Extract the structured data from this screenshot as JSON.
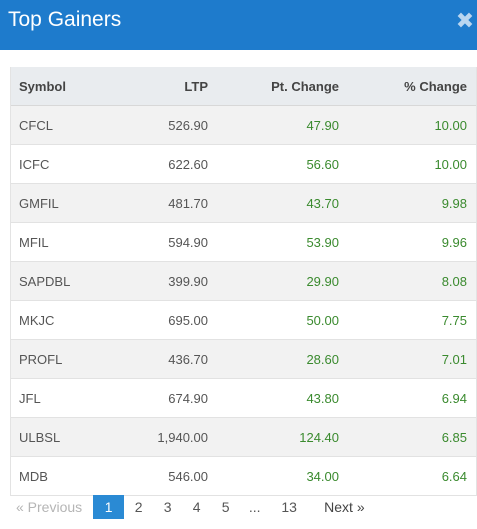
{
  "header": {
    "title": "Top Gainers",
    "close_glyph": "✖"
  },
  "table": {
    "columns": [
      "Symbol",
      "LTP",
      "Pt. Change",
      "% Change"
    ],
    "rows": [
      {
        "symbol": "CFCL",
        "ltp": "526.90",
        "pt_change": "47.90",
        "pct_change": "10.00"
      },
      {
        "symbol": "ICFC",
        "ltp": "622.60",
        "pt_change": "56.60",
        "pct_change": "10.00"
      },
      {
        "symbol": "GMFIL",
        "ltp": "481.70",
        "pt_change": "43.70",
        "pct_change": "9.98"
      },
      {
        "symbol": "MFIL",
        "ltp": "594.90",
        "pt_change": "53.90",
        "pct_change": "9.96"
      },
      {
        "symbol": "SAPDBL",
        "ltp": "399.90",
        "pt_change": "29.90",
        "pct_change": "8.08"
      },
      {
        "symbol": "MKJC",
        "ltp": "695.00",
        "pt_change": "50.00",
        "pct_change": "7.75"
      },
      {
        "symbol": "PROFL",
        "ltp": "436.70",
        "pt_change": "28.60",
        "pct_change": "7.01"
      },
      {
        "symbol": "JFL",
        "ltp": "674.90",
        "pt_change": "43.80",
        "pct_change": "6.94"
      },
      {
        "symbol": "ULBSL",
        "ltp": "1,940.00",
        "pt_change": "124.40",
        "pct_change": "6.85"
      },
      {
        "symbol": "MDB",
        "ltp": "546.00",
        "pt_change": "34.00",
        "pct_change": "6.64"
      }
    ]
  },
  "pagination": {
    "previous_label": "« Previous",
    "pages": [
      "1",
      "2",
      "3",
      "4",
      "5",
      "...",
      "13"
    ],
    "active_page": "1",
    "next_label": "Next »"
  },
  "colors": {
    "header_bg": "#1e7bcc",
    "positive": "#3a8a2e",
    "active_page": "#2a8ad4"
  }
}
